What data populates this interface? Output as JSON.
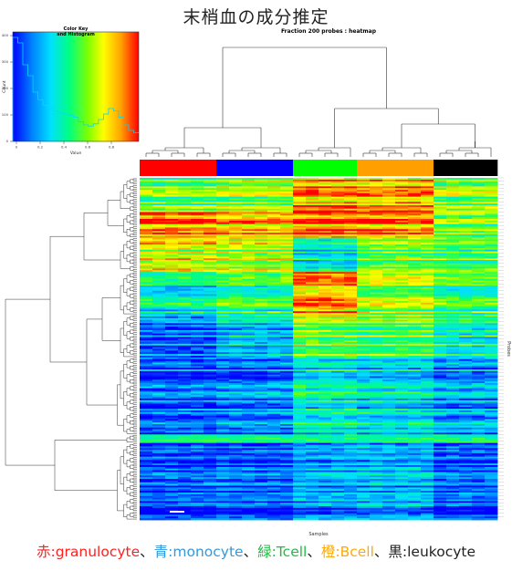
{
  "slide_title": "末梢血の成分推定",
  "heatmap_title": "Fraction 200 probes : heatmap",
  "color_key": {
    "title_line1": "Color Key",
    "title_line2": "and Histogram",
    "xlabel": "Value",
    "ylabel": "Count",
    "x_ticks": [
      "0",
      "0.2",
      "0.4",
      "0.6",
      "0.8"
    ],
    "y_ticks": [
      "0",
      "100",
      "200",
      "300",
      "400"
    ],
    "colors": [
      "#0000ff",
      "#00a0ff",
      "#00ffe0",
      "#00ff60",
      "#a0ff00",
      "#ffff00",
      "#ffa000",
      "#ff0000"
    ]
  },
  "xlabel": "Samples",
  "ylabel": "Probes",
  "groups": [
    {
      "key": "赤",
      "name": "granulocyte",
      "color": "#ff0000",
      "legend_color": "#ff2020"
    },
    {
      "key": "青",
      "name": "monocyte",
      "color": "#0000ff",
      "legend_color": "#3399dd"
    },
    {
      "key": "緑",
      "name": "Tcell",
      "color": "#00ff00",
      "legend_color": "#22bb44"
    },
    {
      "key": "橙",
      "name": "Bcell",
      "color": "#ffa000",
      "legend_color": "#ffaa00"
    },
    {
      "key": "黒",
      "name": "leukocyte",
      "color": "#000000",
      "legend_color": "#222222"
    }
  ],
  "legend_separator": "、",
  "legend_colon": ":",
  "chart_data": {
    "type": "heatmap",
    "title": "Fraction 200 probes : heatmap",
    "xlabel": "Samples",
    "ylabel": "Probes",
    "n_probes": 200,
    "color_scale": {
      "min": 0,
      "max": 1,
      "low": "blue",
      "mid": "green",
      "high": "red"
    },
    "column_groups": [
      "granulocyte",
      "monocyte",
      "Tcell",
      "Bcell",
      "leukocyte"
    ],
    "samples_per_group": [
      6,
      6,
      5,
      6,
      5
    ],
    "probe_blocks": [
      {
        "probes": 20,
        "granulocyte": 0.55,
        "monocyte": 0.62,
        "Tcell": 0.85,
        "Bcell": 0.82,
        "leukocyte": 0.6
      },
      {
        "probes": 15,
        "granulocyte": 0.85,
        "monocyte": 0.8,
        "Tcell": 0.88,
        "Bcell": 0.85,
        "leukocyte": 0.55
      },
      {
        "probes": 20,
        "granulocyte": 0.7,
        "monocyte": 0.65,
        "Tcell": 0.35,
        "Bcell": 0.55,
        "leukocyte": 0.5
      },
      {
        "probes": 25,
        "granulocyte": 0.35,
        "monocyte": 0.45,
        "Tcell": 0.82,
        "Bcell": 0.6,
        "leukocyte": 0.45
      },
      {
        "probes": 25,
        "granulocyte": 0.15,
        "monocyte": 0.3,
        "Tcell": 0.6,
        "Bcell": 0.55,
        "leukocyte": 0.4
      },
      {
        "probes": 45,
        "granulocyte": 0.1,
        "monocyte": 0.15,
        "Tcell": 0.35,
        "Bcell": 0.3,
        "leukocyte": 0.2
      },
      {
        "probes": 5,
        "granulocyte": 0.4,
        "monocyte": 0.4,
        "Tcell": 0.4,
        "Bcell": 0.4,
        "leukocyte": 0.4
      },
      {
        "probes": 45,
        "granulocyte": 0.06,
        "monocyte": 0.08,
        "Tcell": 0.18,
        "Bcell": 0.2,
        "leukocyte": 0.08
      }
    ]
  }
}
